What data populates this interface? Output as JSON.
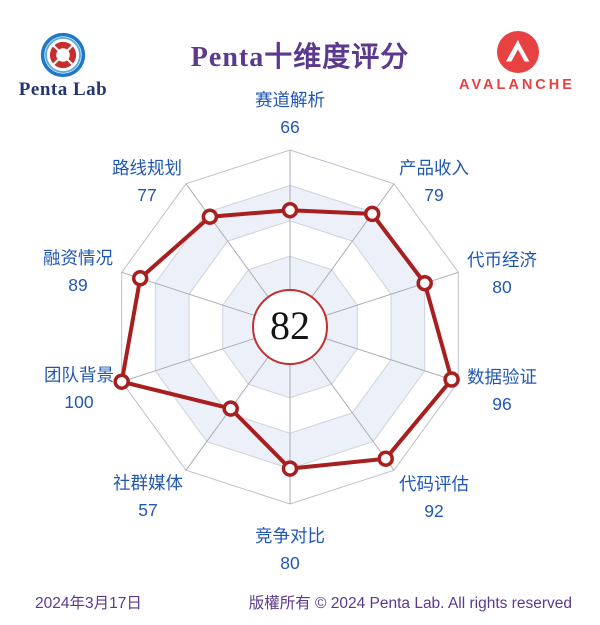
{
  "header": {
    "brand": {
      "name": "Penta Lab"
    },
    "title": "Penta十维度评分",
    "partner": {
      "name": "AVALANCHE"
    }
  },
  "chart_data": {
    "type": "radar",
    "title": "Penta十维度评分",
    "categories": [
      "赛道解析",
      "产品收入",
      "代币经济",
      "数据验证",
      "代码评估",
      "竞争对比",
      "社群媒体",
      "团队背景",
      "融资情况",
      "路线规划"
    ],
    "values": [
      66,
      79,
      80,
      96,
      92,
      80,
      57,
      100,
      89,
      77
    ],
    "center_score": "82",
    "scale_max": 100,
    "rings": 5,
    "start_axis": "top",
    "direction": "clockwise",
    "grid": "decagon, alternating split bands, no tick labels",
    "legend": "none"
  },
  "colors": {
    "accent_purple": "#5B3A8E",
    "label_blue": "#2157B4",
    "series_red": "#A81F1F",
    "center_ring_red": "#C03030",
    "band_shade": "#ECF0F8",
    "band_light": "#FFFFFF",
    "grid_ring": "#CDD2DD",
    "grid_spoke": "#ABADB5",
    "grid_outer": "#BCC1CC",
    "avalanche_red": "#E84142",
    "penta_blue": "#1E7AC8",
    "penta_blue_light": "#5FA8E0",
    "penta_knot_red": "#C62E2E",
    "brand_navy": "#26356F"
  },
  "footer": {
    "date": "2024年3月17日",
    "copyright": "版權所有 © 2024 Penta Lab. All rights reserved"
  }
}
